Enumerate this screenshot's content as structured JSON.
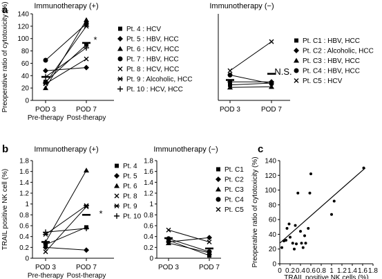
{
  "panel_letters": {
    "a": "a",
    "b": "b",
    "c": "c"
  },
  "chart_data": [
    {
      "id": "a_left",
      "type": "line",
      "title": "Immunotherapy (+)",
      "ylabel": "Preoperative ratio of cytotoxicity (%)",
      "categories": [
        "POD 3",
        "POD 7"
      ],
      "category_sublabels": [
        "Pre-therapy",
        "Post-therapy"
      ],
      "ylim": [
        0,
        140
      ],
      "yticks": [
        0,
        20,
        40,
        60,
        80,
        100,
        120,
        140
      ],
      "series": [
        {
          "name": "Pt. 4 : HCV",
          "marker": "square",
          "values": [
            30,
            90
          ]
        },
        {
          "name": "Pt. 5 : HBV, HCC",
          "marker": "diamond",
          "values": [
            48,
            53
          ]
        },
        {
          "name": "Pt. 6 : HCV, HCC",
          "marker": "triangle",
          "values": [
            20,
            130
          ]
        },
        {
          "name": "Pt. 7 : HBV, HCC",
          "marker": "circle",
          "values": [
            65,
            124
          ]
        },
        {
          "name": "Pt. 8 : HCV, HCC",
          "marker": "x",
          "values": [
            27,
            67
          ]
        },
        {
          "name": "Pt. 9 : Alcoholic, HCC",
          "marker": "asterisk",
          "values": [
            28,
            120
          ]
        },
        {
          "name": "Pt. 10 : HCV, HCC",
          "marker": "plus",
          "values": [
            38,
            85
          ]
        }
      ],
      "mean": [
        38,
        93
      ],
      "annotation": "*"
    },
    {
      "id": "a_right",
      "type": "line",
      "title": "Immunotherapy (−)",
      "categories": [
        "POD 3",
        "POD 7"
      ],
      "ylim": [
        0,
        140
      ],
      "series": [
        {
          "name": "Pt. C1 : HBV, HCC",
          "marker": "square",
          "values": [
            25,
            28
          ]
        },
        {
          "name": "Pt. C2 : Alcoholic, HCC",
          "marker": "diamond",
          "values": [
            30,
            30
          ]
        },
        {
          "name": "Pt. C3 : HBV, HCC",
          "marker": "triangle",
          "values": [
            21,
            22
          ]
        },
        {
          "name": "Pt. C4 : HBV, HCC",
          "marker": "circle",
          "values": [
            41,
            27
          ]
        },
        {
          "name": "Pt. C5 : HCV",
          "marker": "x",
          "values": [
            48,
            95
          ]
        }
      ],
      "mean": [
        33,
        43
      ],
      "annotation": "N.S."
    },
    {
      "id": "b_left",
      "type": "line",
      "title": "Immunotherapy (+)",
      "ylabel": "TRAIL positive NK cell (%)",
      "categories": [
        "POD 3",
        "POD 7"
      ],
      "category_sublabels": [
        "Pre-therapy",
        "Post-therapy"
      ],
      "ylim": [
        0,
        1.8
      ],
      "yticks": [
        0,
        0.2,
        0.4,
        0.6,
        0.8,
        1,
        1.2,
        1.4,
        1.6,
        1.8
      ],
      "series": [
        {
          "name": "Pt. 4",
          "marker": "square",
          "values": [
            0.25,
            0.57
          ]
        },
        {
          "name": "Pt. 5",
          "marker": "diamond",
          "values": [
            0.2,
            0.15
          ]
        },
        {
          "name": "Pt. 6",
          "marker": "triangle",
          "values": [
            0.3,
            1.62
          ]
        },
        {
          "name": "Pt. 8",
          "marker": "x",
          "values": [
            0.12,
            0.95
          ]
        },
        {
          "name": "Pt. 9",
          "marker": "asterisk",
          "values": [
            0.44,
            0.97
          ]
        },
        {
          "name": "Pt. 10",
          "marker": "plus",
          "values": [
            0.48,
            0.55
          ]
        }
      ],
      "mean": [
        0.3,
        0.8
      ],
      "annotation": "*"
    },
    {
      "id": "b_right",
      "type": "line",
      "title": "Immunotherapy (−)",
      "categories": [
        "POD 3",
        "POD 7"
      ],
      "ylim": [
        0,
        1.8
      ],
      "yticks": [
        0,
        0.2,
        0.4,
        0.6,
        0.8,
        1,
        1.2,
        1.4,
        1.6,
        1.8
      ],
      "series": [
        {
          "name": "Pt. C1",
          "marker": "square",
          "values": [
            0.33,
            0.05
          ]
        },
        {
          "name": "Pt. C2",
          "marker": "diamond",
          "values": [
            0.3,
            0.38
          ]
        },
        {
          "name": "Pt. C3",
          "marker": "triangle",
          "values": [
            0.28,
            0.1
          ]
        },
        {
          "name": "Pt. C4",
          "marker": "circle",
          "values": [
            0.36,
            0.12
          ]
        },
        {
          "name": "Pt. C5",
          "marker": "x",
          "values": [
            0.52,
            0.3
          ]
        }
      ],
      "mean": [
        0.37,
        0.18
      ]
    },
    {
      "id": "c",
      "type": "scatter",
      "xlabel": "TRAIL positive NK cells (%)",
      "ylabel": "Preoperative ratio of cytotoxicity (%)",
      "xlim": [
        0,
        1.8
      ],
      "ylim": [
        0,
        140
      ],
      "xticks": [
        0,
        0.2,
        0.4,
        0.6,
        0.8,
        1,
        1.2,
        1.4,
        1.6,
        1.8
      ],
      "yticks": [
        0,
        20,
        40,
        60,
        80,
        100,
        120,
        140
      ],
      "points": [
        [
          0.04,
          22
        ],
        [
          0.08,
          31
        ],
        [
          0.12,
          32
        ],
        [
          0.14,
          48
        ],
        [
          0.18,
          54
        ],
        [
          0.2,
          36
        ],
        [
          0.25,
          28
        ],
        [
          0.28,
          20
        ],
        [
          0.3,
          52
        ],
        [
          0.32,
          27
        ],
        [
          0.35,
          96
        ],
        [
          0.4,
          44
        ],
        [
          0.42,
          28
        ],
        [
          0.45,
          22
        ],
        [
          0.48,
          38
        ],
        [
          0.5,
          28
        ],
        [
          0.55,
          48
        ],
        [
          0.58,
          96
        ],
        [
          0.6,
          122
        ],
        [
          1.0,
          67
        ],
        [
          1.05,
          85
        ],
        [
          1.62,
          130
        ]
      ],
      "fit_line": [
        [
          0,
          28
        ],
        [
          1.65,
          130
        ]
      ]
    }
  ]
}
